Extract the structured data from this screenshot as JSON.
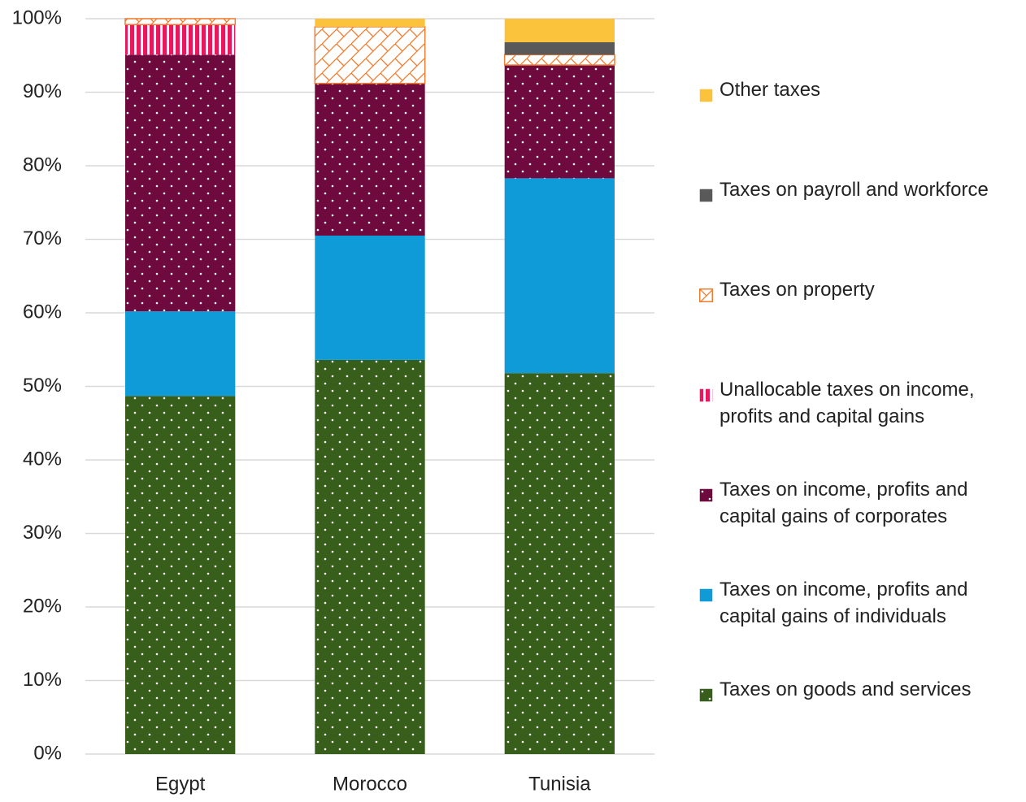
{
  "chart_data": {
    "type": "stacked_bar",
    "categories": [
      "Egypt",
      "Morocco",
      "Tunisia"
    ],
    "series": [
      {
        "name": "Taxes on goods and services",
        "color": "#375f1b",
        "pattern": "dots",
        "values": [
          48.7,
          53.6,
          51.8
        ]
      },
      {
        "name": "Taxes on income, profits and capital gains of individuals",
        "color": "#0e9bd8",
        "pattern": "solid",
        "values": [
          11.5,
          16.9,
          26.5
        ]
      },
      {
        "name": "Taxes on income, profits and capital gains of corporates",
        "color": "#6e0a3e",
        "pattern": "dots",
        "values": [
          34.9,
          20.7,
          15.4
        ]
      },
      {
        "name": "Unallocable taxes on income, profits and capital gains",
        "color": "#e8185a",
        "pattern": "vstripes",
        "values": [
          4.1,
          0,
          0
        ]
      },
      {
        "name": "Taxes on property",
        "color": "#ed7d31",
        "pattern": "crosshatch",
        "values": [
          0.8,
          7.7,
          1.4
        ]
      },
      {
        "name": "Taxes on payroll and workforce",
        "color": "#595959",
        "pattern": "solid",
        "values": [
          0,
          0,
          1.7
        ]
      },
      {
        "name": "Other taxes",
        "color": "#fbc23b",
        "pattern": "solid",
        "values": [
          0,
          1.1,
          3.2
        ]
      }
    ],
    "ylim": [
      0,
      100
    ],
    "yticks": [
      {
        "value": 0,
        "label": "0%"
      },
      {
        "value": 10,
        "label": "10%"
      },
      {
        "value": 20,
        "label": "20%"
      },
      {
        "value": 30,
        "label": "30%"
      },
      {
        "value": 40,
        "label": "40%"
      },
      {
        "value": 50,
        "label": "50%"
      },
      {
        "value": 60,
        "label": "60%"
      },
      {
        "value": 70,
        "label": "70%"
      },
      {
        "value": 80,
        "label": "80%"
      },
      {
        "value": 90,
        "label": "90%"
      },
      {
        "value": 100,
        "label": "100%"
      }
    ],
    "grid": true,
    "legend": "right"
  }
}
